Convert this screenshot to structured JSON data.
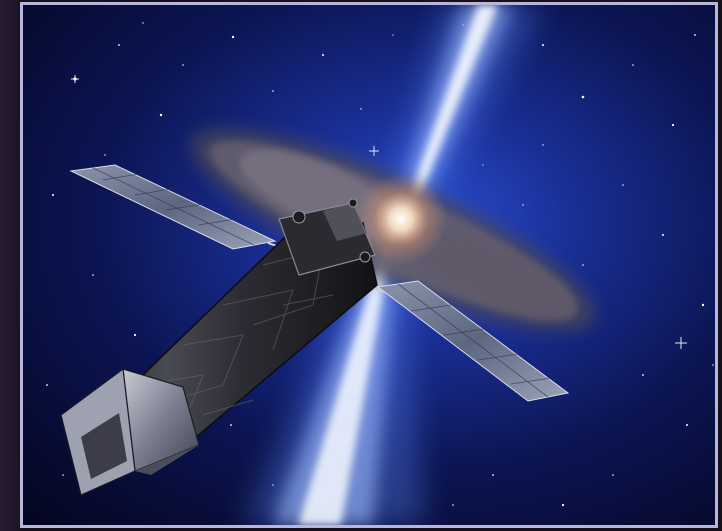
{
  "image": {
    "alt": "",
    "colors": {
      "frame_border": "#b9b6dc",
      "space_dark": "#04051a",
      "space_blue": "#1f3fa6",
      "jet_core": "#eef4ff",
      "jet_glow": "#5f8cff",
      "dust_cloud": "#6e6672",
      "telescope_body": "#3a3a40",
      "solar_panel": "#6f7890"
    },
    "icons": []
  }
}
